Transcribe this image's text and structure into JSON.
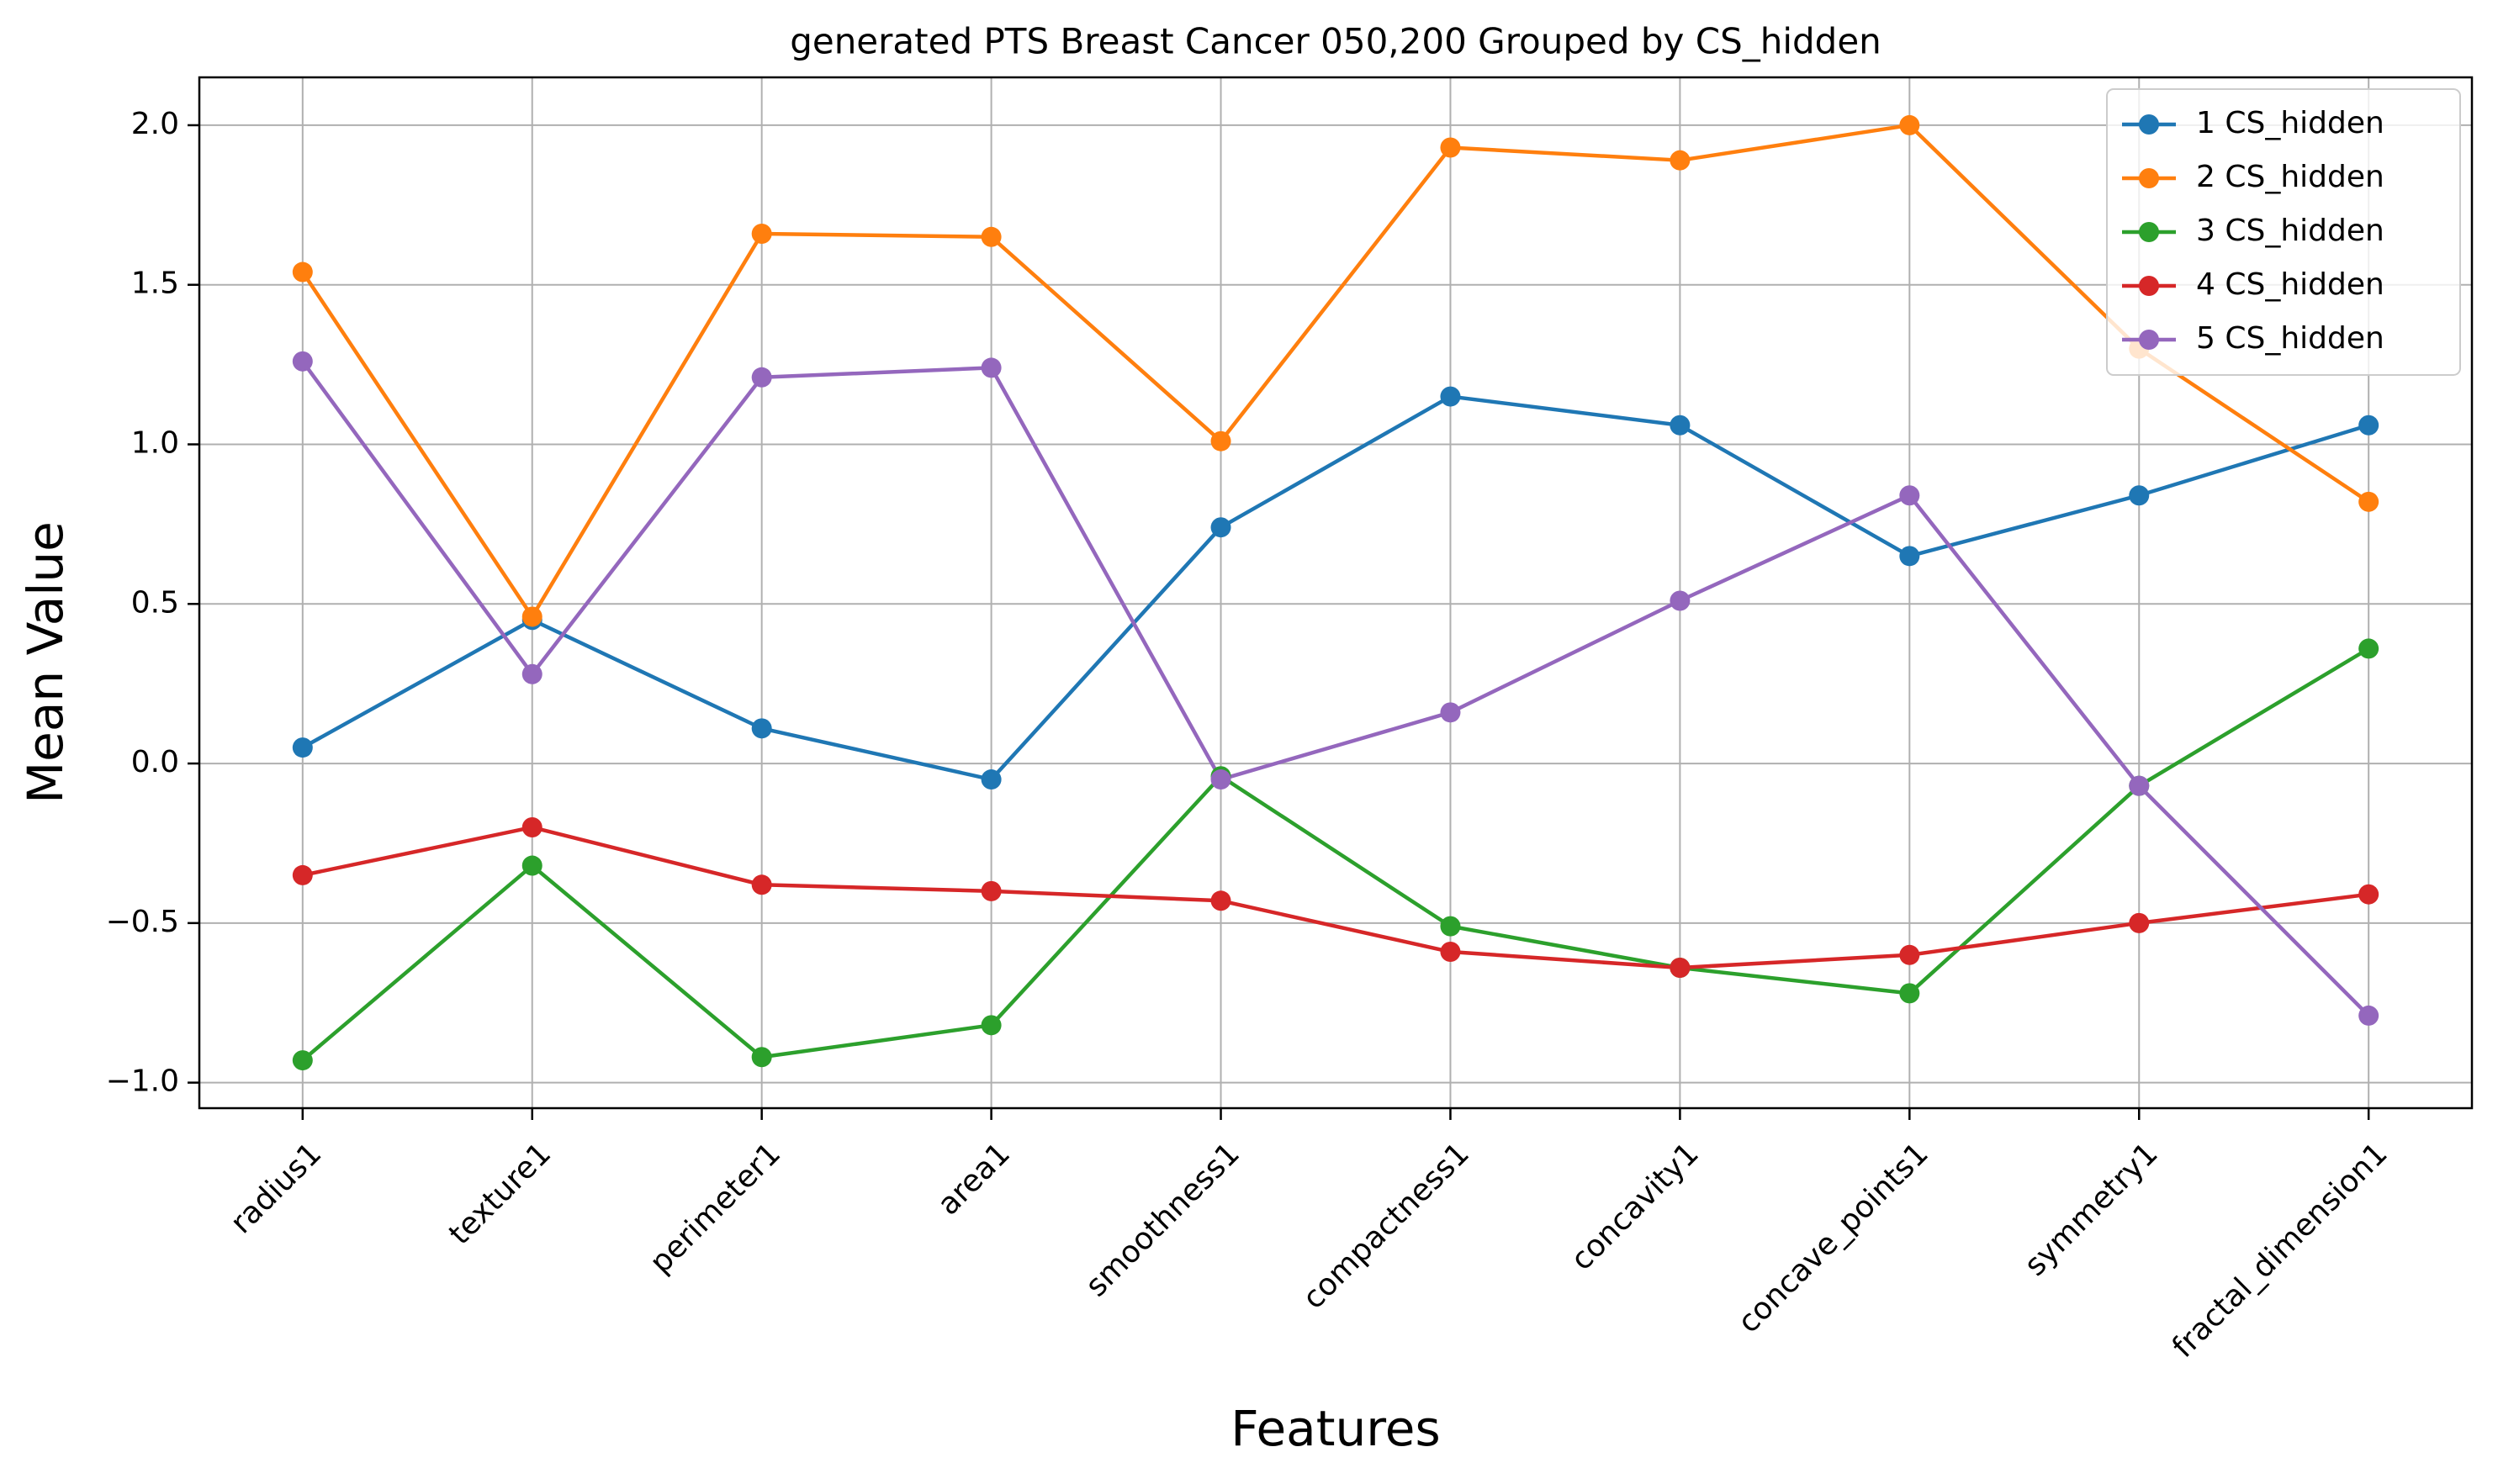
{
  "chart_data": {
    "type": "line",
    "title": "generated PTS Breast Cancer 050,200 Grouped by CS_hidden",
    "xlabel": "Features",
    "ylabel": "Mean Value",
    "categories": [
      "radius1",
      "texture1",
      "perimeter1",
      "area1",
      "smoothness1",
      "compactness1",
      "concavity1",
      "concave_points1",
      "symmetry1",
      "fractal_dimension1"
    ],
    "ylim": [
      -1.08,
      2.15
    ],
    "yticks": [
      -1.0,
      -0.5,
      0.0,
      0.5,
      1.0,
      1.5,
      2.0
    ],
    "ytick_labels": [
      "−1.0",
      "−0.5",
      "0.0",
      "0.5",
      "1.0",
      "1.5",
      "2.0"
    ],
    "grid": true,
    "legend_position": "top-right",
    "series": [
      {
        "name": "1 CS_hidden",
        "color": "#1f77b4",
        "values": [
          0.05,
          0.45,
          0.11,
          -0.05,
          0.74,
          1.15,
          1.06,
          0.65,
          0.84,
          1.06
        ]
      },
      {
        "name": "2 CS_hidden",
        "color": "#ff7f0e",
        "values": [
          1.54,
          0.46,
          1.66,
          1.65,
          1.01,
          1.93,
          1.89,
          2.0,
          1.3,
          0.82
        ]
      },
      {
        "name": "3 CS_hidden",
        "color": "#2ca02c",
        "values": [
          -0.93,
          -0.32,
          -0.92,
          -0.82,
          -0.04,
          -0.51,
          -0.64,
          -0.72,
          -0.07,
          0.36
        ]
      },
      {
        "name": "4 CS_hidden",
        "color": "#d62728",
        "values": [
          -0.35,
          -0.2,
          -0.38,
          -0.4,
          -0.43,
          -0.59,
          -0.64,
          -0.6,
          -0.5,
          -0.41
        ]
      },
      {
        "name": "5 CS_hidden",
        "color": "#9467bd",
        "values": [
          1.26,
          0.28,
          1.21,
          1.24,
          -0.05,
          0.16,
          0.51,
          0.84,
          -0.07,
          -0.79
        ]
      }
    ]
  }
}
